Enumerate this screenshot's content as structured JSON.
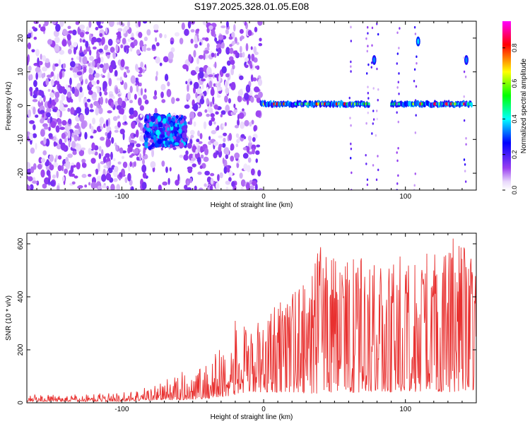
{
  "title": "S197.2025.328.01.05.E08",
  "colors": {
    "noise_purple": "#7a2be6",
    "noise_light": "#c9a8f2",
    "signal_line": "#e8302f",
    "axis": "#000000"
  },
  "chart_data": [
    {
      "type": "heatmap",
      "xlabel": "Height of straight line (km)",
      "ylabel": "Frequency (Hz)",
      "xlim": [
        -167,
        150
      ],
      "ylim": [
        -25,
        25
      ],
      "x_ticks": [
        -100,
        0,
        100
      ],
      "y_ticks": [
        -20,
        -10,
        0,
        10,
        20
      ],
      "colorbar": {
        "label": "Normalized spectral amplitude",
        "range": [
          0.0,
          0.95
        ],
        "ticks": [
          "0.0",
          "0.2",
          "0.4",
          "0.6",
          "0.8"
        ],
        "colormap": "rainbow (white-purple-blue-cyan-green-yellow-red-magenta)"
      },
      "features": [
        {
          "x_range": [
            -167,
            -2
          ],
          "freq_range": [
            -25,
            25
          ],
          "amplitude": 0.15
        },
        {
          "x_range": [
            -83,
            -55
          ],
          "freq_range": [
            -12,
            -3
          ],
          "amplitude": 0.3,
          "center_freq": -9
        },
        {
          "x_range": [
            -2,
            75
          ],
          "center_freq": 0.5,
          "width_hz": 3,
          "amplitude": 0.7
        },
        {
          "x_range": [
            90,
            147
          ],
          "center_freq": 0.5,
          "width_hz": 3,
          "amplitude": 0.75
        },
        {
          "x": 109,
          "center_freq": 19,
          "amplitude": 0.3
        },
        {
          "x": 143,
          "center_freq": 13.5,
          "amplitude": 0.25
        },
        {
          "x": 78,
          "center_freq": 13.5,
          "amplitude": 0.25
        }
      ]
    },
    {
      "type": "line",
      "xlabel": "Height of straight line (km)",
      "ylabel": "SNR (10 * v/v)",
      "xlim": [
        -167,
        150
      ],
      "ylim": [
        0,
        640
      ],
      "x_ticks": [
        -100,
        0,
        100
      ],
      "y_ticks": [
        0,
        200,
        400,
        600
      ],
      "series": [
        {
          "x": [
            -167,
            -140,
            -120,
            -100,
            -80,
            -60,
            -40,
            -30,
            -20,
            -10,
            0,
            10,
            20,
            30,
            40,
            50,
            60,
            70,
            80,
            90,
            100,
            110,
            120,
            130,
            140,
            150
          ],
          "min": [
            5,
            5,
            5,
            5,
            10,
            10,
            15,
            20,
            30,
            40,
            40,
            40,
            40,
            35,
            35,
            40,
            35,
            40,
            45,
            40,
            45,
            40,
            45,
            40,
            35,
            50
          ],
          "max": [
            30,
            30,
            35,
            40,
            65,
            110,
            160,
            230,
            310,
            300,
            310,
            380,
            420,
            470,
            590,
            550,
            590,
            560,
            520,
            510,
            580,
            550,
            600,
            640,
            610,
            560
          ]
        }
      ]
    }
  ]
}
